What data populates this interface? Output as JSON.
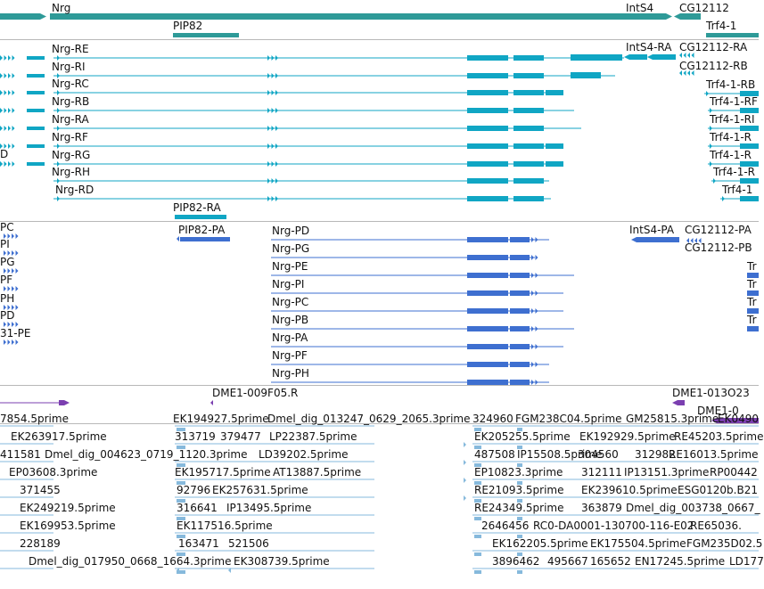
{
  "colors": {
    "gene": "#2e9a98",
    "transcript": "#10a6c4",
    "protein": "#3e6fd0",
    "primer": "#7b3fb0",
    "est": "#86b9dc",
    "separator": "#b8b8b8"
  },
  "tracks": {
    "genes": {
      "items": [
        {
          "id": "nrg",
          "label": "Nrg"
        },
        {
          "id": "ints4",
          "label": "IntS4"
        },
        {
          "id": "cg12112",
          "label": "CG12112"
        },
        {
          "id": "pip82",
          "label": "PIP82"
        },
        {
          "id": "trf4",
          "label": "Trf4-1"
        }
      ]
    },
    "transcripts": {
      "items": [
        {
          "id": "nrg-re",
          "label": "Nrg-RE"
        },
        {
          "id": "nrg-ri",
          "label": "Nrg-RI"
        },
        {
          "id": "nrg-rc",
          "label": "Nrg-RC"
        },
        {
          "id": "nrg-rb",
          "label": "Nrg-RB"
        },
        {
          "id": "nrg-ra",
          "label": "Nrg-RA"
        },
        {
          "id": "nrg-rf",
          "label": "Nrg-RF"
        },
        {
          "id": "nrg-rg",
          "label": "Nrg-RG"
        },
        {
          "id": "nrg-rh",
          "label": "Nrg-RH"
        },
        {
          "id": "nrg-rd",
          "label": "Nrg-RD"
        },
        {
          "id": "pip82-ra",
          "label": "PIP82-RA"
        },
        {
          "id": "ints4-ra",
          "label": "IntS4-RA"
        },
        {
          "id": "cg12112-ra",
          "label": "CG12112-RA"
        },
        {
          "id": "cg12112-rb",
          "label": "CG12112-RB"
        },
        {
          "id": "trf4-rb1",
          "label": "Trf4-1-RB"
        },
        {
          "id": "trf4-rf",
          "label": "Trf4-1-RF"
        },
        {
          "id": "trf4-ri",
          "label": "Trf4-1-RI"
        },
        {
          "id": "trf4-r4",
          "label": "Trf4-1-R"
        },
        {
          "id": "trf4-r5",
          "label": "Trf4-1-R"
        },
        {
          "id": "trf4-r6",
          "label": "Trf4-1-R"
        },
        {
          "id": "trf4-r7",
          "label": "Trf4-1"
        },
        {
          "id": "left-d",
          "label": "D"
        }
      ]
    },
    "proteins": {
      "items": [
        {
          "id": "pc-left",
          "label": "PC"
        },
        {
          "id": "pi-left",
          "label": "PI"
        },
        {
          "id": "pg-left",
          "label": "PG"
        },
        {
          "id": "pf-left",
          "label": "PF"
        },
        {
          "id": "ph-left",
          "label": "PH"
        },
        {
          "id": "pd-left",
          "label": "PD"
        },
        {
          "id": "pe-left",
          "label": "31-PE"
        },
        {
          "id": "pip82-pa",
          "label": "PIP82-PA"
        },
        {
          "id": "nrg-pd",
          "label": "Nrg-PD"
        },
        {
          "id": "nrg-pg",
          "label": "Nrg-PG"
        },
        {
          "id": "nrg-pe",
          "label": "Nrg-PE"
        },
        {
          "id": "nrg-pi",
          "label": "Nrg-PI"
        },
        {
          "id": "nrg-pc",
          "label": "Nrg-PC"
        },
        {
          "id": "nrg-pb",
          "label": "Nrg-PB"
        },
        {
          "id": "nrg-pa",
          "label": "Nrg-PA"
        },
        {
          "id": "nrg-pf",
          "label": "Nrg-PF"
        },
        {
          "id": "nrg-ph",
          "label": "Nrg-PH"
        },
        {
          "id": "ints4-pa",
          "label": "IntS4-PA"
        },
        {
          "id": "cg12112-pa",
          "label": "CG12112-PA"
        },
        {
          "id": "cg12112-pb",
          "label": "CG12112-PB"
        },
        {
          "id": "tr1",
          "label": "Tr"
        },
        {
          "id": "tr2",
          "label": "Tr"
        },
        {
          "id": "tr3",
          "label": "Tr"
        },
        {
          "id": "tr4",
          "label": "Tr"
        }
      ]
    },
    "primers": {
      "items": [
        {
          "id": "dme1-009f05",
          "label": "DME1-009F05.R"
        },
        {
          "id": "dme1-013o23",
          "label": "DME1-013O23"
        },
        {
          "id": "dme1-trunc",
          "label": "DME1-0"
        }
      ]
    },
    "ests": {
      "items": [
        {
          "id": "e1",
          "label": "7854.5prime"
        },
        {
          "id": "e2",
          "label": "EK194927.5prime"
        },
        {
          "id": "e3",
          "label": "Dmel_dig_013247_0629_2065.3prime"
        },
        {
          "id": "e4",
          "label": "324960"
        },
        {
          "id": "e5",
          "label": "FGM238C04.5prime"
        },
        {
          "id": "e6",
          "label": "GM25815.3prime"
        },
        {
          "id": "e7",
          "label": "EK0490"
        },
        {
          "id": "e8",
          "label": "EK263917.5prime"
        },
        {
          "id": "e9",
          "label": "313719"
        },
        {
          "id": "e10",
          "label": "379477"
        },
        {
          "id": "e11",
          "label": "LP22387.5prime"
        },
        {
          "id": "e12",
          "label": "EK205255.5prime"
        },
        {
          "id": "e13",
          "label": "EK192929.5prime"
        },
        {
          "id": "e14",
          "label": "RE45203.5prime"
        },
        {
          "id": "e15",
          "label": "411581"
        },
        {
          "id": "e16",
          "label": "Dmel_dig_004623_0719_1120.3prime"
        },
        {
          "id": "e17",
          "label": "LD39202.5prime"
        },
        {
          "id": "e18",
          "label": "487508"
        },
        {
          "id": "e19",
          "label": "IP15508.5prime"
        },
        {
          "id": "e20",
          "label": "304560"
        },
        {
          "id": "e21",
          "label": "312982"
        },
        {
          "id": "e22",
          "label": "RE16013.5prime"
        },
        {
          "id": "e23",
          "label": "EP03608.3prime"
        },
        {
          "id": "e24",
          "label": "EK195717.5prime"
        },
        {
          "id": "e25",
          "label": "AT13887.5prime"
        },
        {
          "id": "e26",
          "label": "EP10823.3prime"
        },
        {
          "id": "e27",
          "label": "312111"
        },
        {
          "id": "e28",
          "label": "IP13151.3prime"
        },
        {
          "id": "e29",
          "label": "RP00442"
        },
        {
          "id": "e30",
          "label": "371455"
        },
        {
          "id": "e31",
          "label": "92796"
        },
        {
          "id": "e32",
          "label": "EK257631.5prime"
        },
        {
          "id": "e33",
          "label": "RE21093.5prime"
        },
        {
          "id": "e34",
          "label": "EK239610.5prime"
        },
        {
          "id": "e35",
          "label": "ESG0120b.B21"
        },
        {
          "id": "e36",
          "label": "EK249219.5prime"
        },
        {
          "id": "e37",
          "label": "316641"
        },
        {
          "id": "e38",
          "label": "IP13495.5prime"
        },
        {
          "id": "e39",
          "label": "RE24349.5prime"
        },
        {
          "id": "e40",
          "label": "363879"
        },
        {
          "id": "e41",
          "label": "Dmel_dig_003738_0667_"
        },
        {
          "id": "e42",
          "label": "EK169953.5prime"
        },
        {
          "id": "e43",
          "label": "EK117516.5prime"
        },
        {
          "id": "e44",
          "label": "2646456"
        },
        {
          "id": "e45",
          "label": "RC0-DA0001-130700-116-E02"
        },
        {
          "id": "e46",
          "label": "RE65036."
        },
        {
          "id": "e47",
          "label": "228189"
        },
        {
          "id": "e48",
          "label": "163471"
        },
        {
          "id": "e49",
          "label": "521506"
        },
        {
          "id": "e50",
          "label": "EK162205.5prime"
        },
        {
          "id": "e51",
          "label": "EK175504.5prime"
        },
        {
          "id": "e52",
          "label": "FGM235D02.5"
        },
        {
          "id": "e53",
          "label": "Dmel_dig_017950_0668_1664.3prime"
        },
        {
          "id": "e54",
          "label": "EK308739.5prime"
        },
        {
          "id": "e55",
          "label": "3896462"
        },
        {
          "id": "e56",
          "label": "495667"
        },
        {
          "id": "e57",
          "label": "165652"
        },
        {
          "id": "e58",
          "label": "EN17245.5prime"
        },
        {
          "id": "e59",
          "label": "LD177"
        }
      ]
    }
  }
}
